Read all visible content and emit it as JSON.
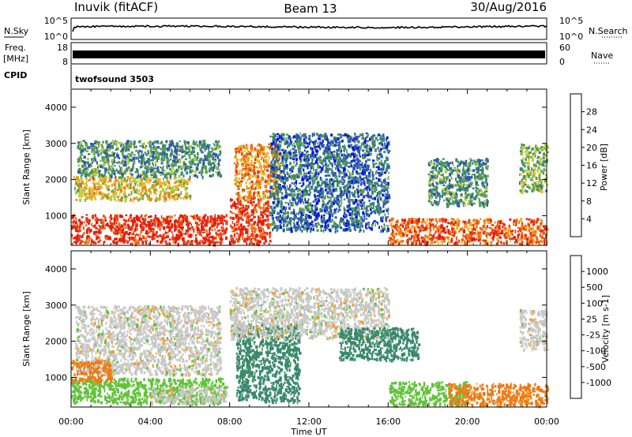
{
  "header": {
    "station": "Inuvik (fitACF)",
    "beam": "Beam 13",
    "date": "30/Aug/2016"
  },
  "side_labels": {
    "nsky": "N.Sky",
    "nsearch": "N.Search",
    "freq_line1": "Freq.",
    "freq_line2": "[MHz]",
    "nave": "Nave",
    "cpid": "CPID",
    "cpid_value": "twofsound 3503"
  },
  "noise_axis": {
    "left_ticks": [
      "10^5",
      "10^0"
    ],
    "right_ticks": [
      "10^5",
      "10^0"
    ]
  },
  "freq_axis": {
    "left_ticks": [
      "18",
      "8"
    ],
    "right_ticks": [
      "60",
      "0"
    ]
  },
  "chart_data": [
    {
      "type": "heatmap",
      "name": "power",
      "ylabel": "Slant Range [km]",
      "xlabel": "",
      "x_ticks": [
        "00:00",
        "04:00",
        "08:00",
        "12:00",
        "16:00",
        "20:00",
        "00:00"
      ],
      "x_range_hours": [
        0,
        24
      ],
      "y_ticks": [
        1000,
        2000,
        3000,
        4000
      ],
      "ylim": [
        180,
        4500
      ],
      "colorbar": {
        "label": "Power [dB]",
        "range": [
          0,
          32
        ],
        "tick_values": [
          4,
          8,
          12,
          16,
          20,
          24,
          28
        ],
        "colors": [
          "#0a14e6",
          "#2d55b4",
          "#3a8a6a",
          "#5aa050",
          "#b8cc3a",
          "#f0b424",
          "#f07a14",
          "#ec3b10",
          "#e31a10"
        ]
      },
      "regions": [
        {
          "t": [
            0.0,
            7.8
          ],
          "r": [
            250,
            1050
          ],
          "v": 29
        },
        {
          "t": [
            0.1,
            6.0
          ],
          "r": [
            1450,
            2100
          ],
          "v": 18
        },
        {
          "t": [
            0.3,
            7.5
          ],
          "r": [
            2100,
            3100
          ],
          "v": 10
        },
        {
          "t": [
            8.0,
            10.0
          ],
          "r": [
            250,
            1500
          ],
          "v": 28
        },
        {
          "t": [
            8.2,
            10.5
          ],
          "r": [
            1500,
            3000
          ],
          "v": 22
        },
        {
          "t": [
            10.0,
            16.0
          ],
          "r": [
            600,
            3300
          ],
          "v": 7
        },
        {
          "t": [
            16.0,
            24.0
          ],
          "r": [
            250,
            950
          ],
          "v": 25
        },
        {
          "t": [
            18.0,
            21.0
          ],
          "r": [
            1300,
            2600
          ],
          "v": 10
        },
        {
          "t": [
            22.6,
            24.0
          ],
          "r": [
            1700,
            3000
          ],
          "v": 14
        }
      ]
    },
    {
      "type": "heatmap",
      "name": "velocity",
      "ylabel": "Slant Range [km]",
      "xlabel": "Time UT",
      "x_ticks": [
        "00:00",
        "04:00",
        "08:00",
        "12:00",
        "16:00",
        "20:00",
        "00:00"
      ],
      "x_range_hours": [
        0,
        24
      ],
      "y_ticks": [
        1000,
        2000,
        3000,
        4000
      ],
      "ylim": [
        180,
        4500
      ],
      "colorbar": {
        "label": "Velocity [m s-1]",
        "tick_labels": [
          "1000",
          "500",
          "100",
          "25",
          "-25",
          "-100",
          "-500",
          "-1000"
        ],
        "colors": [
          "#1030c0",
          "#2f6fb4",
          "#3a8a6a",
          "#62c23a",
          "#c8c8c8",
          "#f0a030",
          "#ee7a14",
          "#e84010",
          "#e31a10"
        ]
      },
      "regions": [
        {
          "t": [
            0.0,
            7.8
          ],
          "r": [
            300,
            1000
          ],
          "v": 60
        },
        {
          "t": [
            4.0,
            7.8
          ],
          "r": [
            300,
            750
          ],
          "v": 0
        },
        {
          "t": [
            0.2,
            7.5
          ],
          "r": [
            1100,
            3000
          ],
          "v": 0
        },
        {
          "t": [
            0.0,
            2.0
          ],
          "r": [
            900,
            1500
          ],
          "v": -200
        },
        {
          "t": [
            8.3,
            11.5
          ],
          "r": [
            350,
            2500
          ],
          "v": 300
        },
        {
          "t": [
            8.0,
            16.0
          ],
          "r": [
            2100,
            3500
          ],
          "v": 0
        },
        {
          "t": [
            13.5,
            17.5
          ],
          "r": [
            1500,
            2400
          ],
          "v": 300
        },
        {
          "t": [
            16.0,
            20.0
          ],
          "r": [
            250,
            900
          ],
          "v": 60
        },
        {
          "t": [
            19.0,
            24.0
          ],
          "r": [
            250,
            850
          ],
          "v": -200
        },
        {
          "t": [
            22.6,
            24.0
          ],
          "r": [
            1800,
            2900
          ],
          "v": 0
        }
      ]
    }
  ]
}
